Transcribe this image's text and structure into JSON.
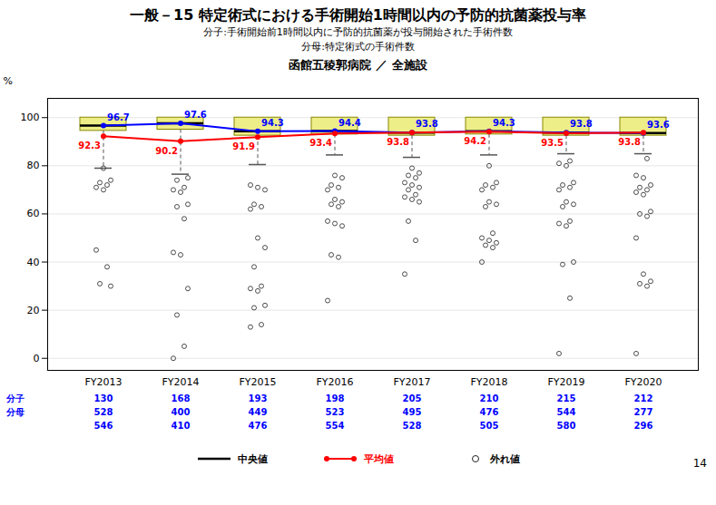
{
  "chart_data": {
    "type": "box",
    "title": "一般－15  特定術式における手術開始1時間以内の予防的抗菌薬投与率",
    "subtitle": [
      "分子:手術開始前1時間以内に予防的抗菌薬が投与開始された手術件数",
      "分母:特定術式の手術件数",
      "函館五稜郭病院  ／  全施設"
    ],
    "ylabel": "%",
    "categories": [
      "FY2013",
      "FY2014",
      "FY2015",
      "FY2016",
      "FY2017",
      "FY2018",
      "FY2019",
      "FY2020"
    ],
    "box": {
      "name": "中央値",
      "color": "#eeee88",
      "median_color": "#000000",
      "q1": [
        94.5,
        95.0,
        92.5,
        93.0,
        92.5,
        93.0,
        92.5,
        92.5
      ],
      "q3": [
        100.0,
        100.0,
        100.0,
        100.0,
        100.0,
        100.0,
        100.0,
        100.0
      ],
      "median": [
        96.7,
        97.6,
        94.3,
        94.4,
        93.8,
        94.3,
        93.8,
        93.6
      ],
      "whisker_low": [
        79.0,
        76.5,
        80.5,
        84.5,
        83.5,
        84.5,
        85.0,
        85.0
      ]
    },
    "outliers": {
      "name": "外れ値",
      "color": "#222222",
      "values": [
        [
          45,
          38,
          31,
          30,
          70,
          71,
          72,
          73,
          74,
          79
        ],
        [
          0,
          5,
          18,
          29,
          43,
          44,
          58,
          63,
          64,
          69,
          70,
          71,
          74,
          75
        ],
        [
          13,
          14,
          21,
          22,
          28,
          29,
          30,
          38,
          46,
          50,
          62,
          63,
          64,
          70,
          71,
          72
        ],
        [
          24,
          42,
          43,
          55,
          56,
          57,
          63,
          64,
          65,
          66,
          70,
          71,
          72,
          75,
          76
        ],
        [
          35,
          49,
          57,
          65,
          66,
          67,
          68,
          70,
          71,
          72,
          73,
          75,
          76,
          77,
          79
        ],
        [
          40,
          46,
          47,
          48,
          49,
          50,
          52,
          63,
          64,
          65,
          70,
          71,
          72,
          73,
          80
        ],
        [
          2,
          25,
          39,
          40,
          55,
          56,
          57,
          63,
          64,
          65,
          70,
          71,
          72,
          73,
          80,
          81,
          82
        ],
        [
          2,
          30,
          31,
          32,
          35,
          50,
          59,
          60,
          61,
          68,
          69,
          70,
          71,
          72,
          75,
          76,
          83
        ]
      ]
    },
    "series": [
      {
        "type": "line",
        "color": "#0000ff",
        "marker": "circle",
        "data_labels": true,
        "values": [
          96.7,
          97.6,
          94.3,
          94.4,
          93.8,
          94.3,
          93.8,
          93.6
        ]
      },
      {
        "name": "平均値",
        "type": "line",
        "color": "#ff0000",
        "marker": "circle",
        "data_labels": true,
        "values": [
          92.3,
          90.2,
          91.9,
          93.4,
          93.8,
          94.2,
          93.5,
          93.8
        ]
      }
    ],
    "table": {
      "color": "blue",
      "groups": [
        {
          "label": "分子",
          "rows": [
            [
              130,
              168,
              193,
              198,
              205,
              210,
              215,
              212
            ]
          ]
        },
        {
          "label": "分母",
          "rows": [
            [
              528,
              400,
              449,
              523,
              495,
              476,
              544,
              277
            ],
            [
              546,
              410,
              476,
              554,
              528,
              505,
              580,
              296
            ]
          ]
        }
      ]
    },
    "annotations": [
      "14"
    ],
    "ylim": [
      -5,
      108
    ],
    "yticks": [
      0,
      20,
      40,
      60,
      80,
      100
    ],
    "grid": true
  }
}
